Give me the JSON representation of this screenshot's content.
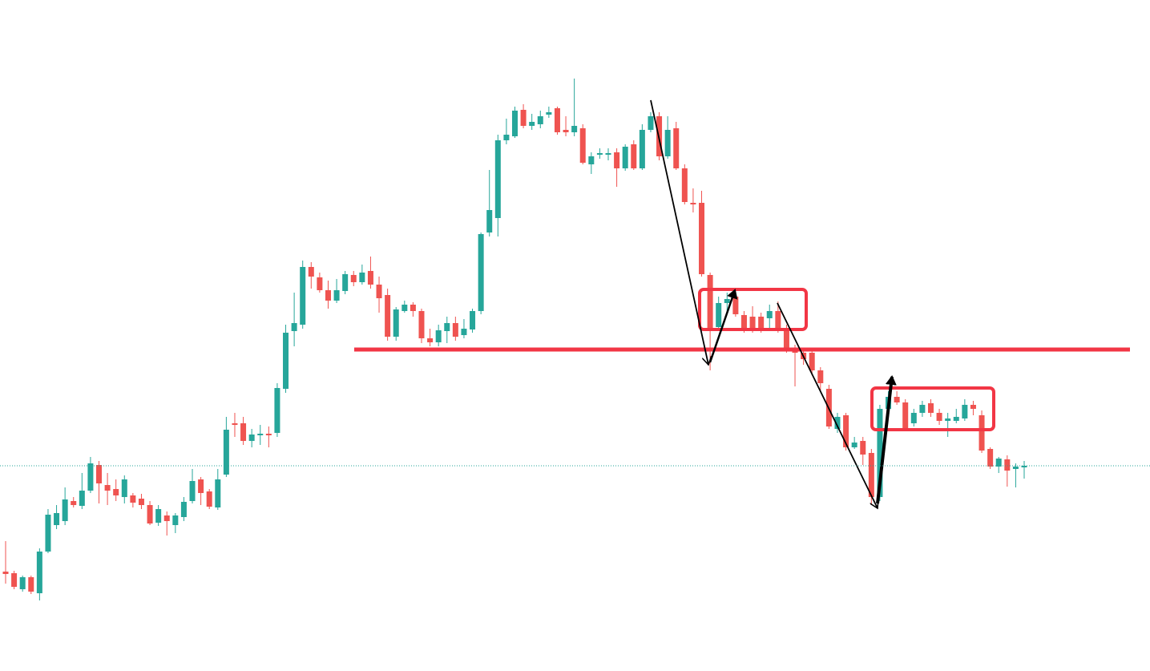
{
  "chart_data": {
    "type": "candlestick",
    "up_color": "#26a69a",
    "down_color": "#ef5350",
    "ylim": [
      0,
      837
    ],
    "open": [
      124,
      122,
      102,
      117,
      97,
      149,
      182,
      187,
      212,
      206,
      225,
      257,
      232,
      227,
      217,
      219,
      215,
      207,
      185,
      194,
      182,
      192,
      212,
      239,
      224,
      204,
      245,
      309,
      309,
      287,
      294,
      296,
      297,
      352,
      424,
      432,
      504,
      491,
      475,
      462,
      474,
      494,
      485,
      499,
      482,
      469,
      417,
      449,
      457,
      449,
      415,
      410,
      424,
      434,
      419,
      426,
      449,
      547,
      565,
      662,
      667,
      700,
      680,
      682,
      694,
      702,
      675,
      672,
      677,
      632,
      644,
      644,
      647,
      627,
      657,
      627,
      675,
      692,
      642,
      677,
      627,
      584,
      584,
      494,
      429,
      459,
      467,
      444,
      442,
      442,
      440,
      449,
      427,
      401,
      397,
      397,
      375,
      352,
      302,
      319,
      279,
      287,
      272,
      217,
      327,
      342,
      335,
      309,
      322,
      334,
      322,
      312,
      312,
      315,
      332,
      319,
      277,
      255,
      264,
      252,
      254
    ],
    "high": [
      162,
      125,
      119,
      119,
      153,
      202,
      207,
      229,
      217,
      247,
      267,
      262,
      247,
      239,
      244,
      222,
      221,
      212,
      207,
      199,
      197,
      217,
      252,
      242,
      227,
      252,
      317,
      322,
      317,
      302,
      307,
      305,
      359,
      432,
      472,
      512,
      510,
      497,
      487,
      489,
      499,
      499,
      507,
      517,
      492,
      477,
      454,
      462,
      460,
      452,
      427,
      432,
      442,
      442,
      439,
      452,
      547,
      625,
      669,
      689,
      704,
      707,
      695,
      699,
      704,
      704,
      692,
      739,
      682,
      647,
      652,
      652,
      652,
      657,
      662,
      682,
      697,
      697,
      692,
      685,
      632,
      602,
      599,
      497,
      467,
      472,
      472,
      449,
      455,
      447,
      457,
      461,
      432,
      407,
      402,
      402,
      379,
      357,
      322,
      322,
      292,
      292,
      277,
      332,
      349,
      349,
      339,
      327,
      337,
      339,
      327,
      322,
      327,
      339,
      337,
      325,
      279,
      267,
      269,
      259,
      262
    ],
    "low": [
      109,
      102,
      99,
      96,
      88,
      147,
      177,
      182,
      204,
      202,
      222,
      209,
      207,
      212,
      209,
      204,
      202,
      182,
      181,
      169,
      172,
      187,
      209,
      207,
      202,
      201,
      242,
      292,
      282,
      279,
      282,
      279,
      292,
      347,
      405,
      427,
      477,
      472,
      452,
      459,
      470,
      480,
      482,
      477,
      447,
      412,
      412,
      447,
      442,
      409,
      405,
      405,
      409,
      412,
      415,
      422,
      445,
      542,
      542,
      657,
      665,
      677,
      675,
      677,
      690,
      669,
      667,
      667,
      632,
      620,
      639,
      637,
      604,
      624,
      625,
      625,
      672,
      637,
      639,
      625,
      582,
      572,
      492,
      375,
      427,
      447,
      442,
      422,
      422,
      422,
      425,
      422,
      397,
      355,
      382,
      369,
      349,
      302,
      297,
      275,
      277,
      257,
      207,
      212,
      322,
      332,
      299,
      305,
      317,
      317,
      307,
      292,
      309,
      312,
      319,
      272,
      252,
      247,
      230,
      229,
      240
    ],
    "close": [
      121,
      105,
      117,
      99,
      149,
      195,
      197,
      214,
      207,
      225,
      259,
      234,
      225,
      219,
      239,
      210,
      207,
      184,
      202,
      187,
      194,
      211,
      237,
      222,
      205,
      239,
      301,
      307,
      287,
      295,
      296,
      294,
      353,
      422,
      434,
      504,
      492,
      475,
      462,
      475,
      495,
      485,
      497,
      482,
      465,
      417,
      451,
      457,
      449,
      415,
      410,
      425,
      434,
      417,
      427,
      449,
      545,
      575,
      662,
      669,
      699,
      680,
      685,
      692,
      697,
      672,
      672,
      680,
      634,
      642,
      646,
      646,
      627,
      654,
      627,
      675,
      692,
      642,
      675,
      627,
      585,
      582,
      495,
      425,
      459,
      464,
      445,
      425,
      425,
      425,
      449,
      427,
      401,
      397,
      389,
      375,
      359,
      305,
      317,
      279,
      285,
      270,
      217,
      327,
      342,
      335,
      302,
      322,
      332,
      322,
      312,
      315,
      317,
      332,
      327,
      275,
      255,
      265,
      250,
      255,
      256
    ]
  }
}
